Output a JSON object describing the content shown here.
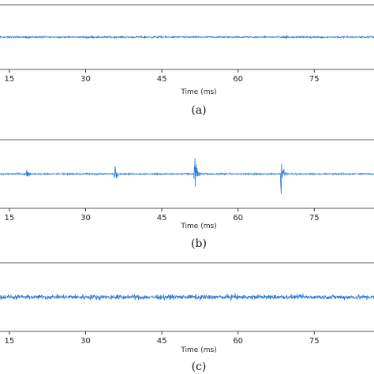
{
  "chart_data": [
    {
      "type": "line",
      "caption": "(a)",
      "xlabel": "Time (ms)",
      "xticks": [
        15,
        30,
        45,
        60,
        75
      ],
      "xlim": [
        13,
        88
      ],
      "ylim": [
        -1,
        1
      ],
      "series_color": "#2a7bd4",
      "noise_amplitude": 0.03,
      "bursts": [
        {
          "x": 69.5,
          "amplitude": 0.08
        }
      ]
    },
    {
      "type": "line",
      "caption": "(b)",
      "xlabel": "Time (ms)",
      "xticks": [
        15,
        30,
        45,
        60,
        75
      ],
      "xlim": [
        13,
        88
      ],
      "ylim": [
        -1,
        1
      ],
      "series_color": "#2a7bd4",
      "noise_amplitude": 0.03,
      "bursts": [
        {
          "x": 18.5,
          "amplitude": 0.4
        },
        {
          "x": 35.8,
          "amplitude": 0.32
        },
        {
          "x": 51.5,
          "amplitude": 0.8
        },
        {
          "x": 68.5,
          "amplitude": 0.95
        }
      ]
    },
    {
      "type": "line",
      "caption": "(c)",
      "xlabel": "Time (ms)",
      "xticks": [
        15,
        30,
        45,
        60,
        75
      ],
      "xlim": [
        13,
        88
      ],
      "ylim": [
        -1,
        1
      ],
      "series_color": "#2a7bd4",
      "noise_amplitude": 0.09,
      "bursts": []
    }
  ]
}
